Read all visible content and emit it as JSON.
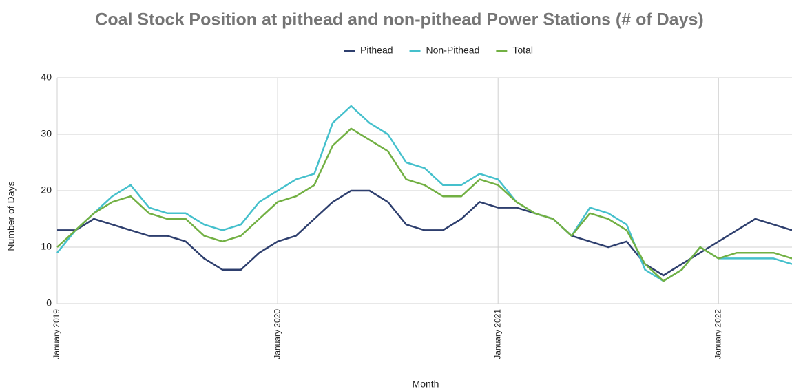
{
  "chart_data": {
    "type": "line",
    "title": "Coal Stock Position at pithead and non-pithead Power Stations (# of Days)",
    "x_label": "Month",
    "y_label": "Number of Days",
    "x": [
      "2019-01",
      "2019-02",
      "2019-03",
      "2019-04",
      "2019-05",
      "2019-06",
      "2019-07",
      "2019-08",
      "2019-09",
      "2019-10",
      "2019-11",
      "2019-12",
      "2020-01",
      "2020-02",
      "2020-03",
      "2020-04",
      "2020-05",
      "2020-06",
      "2020-07",
      "2020-08",
      "2020-09",
      "2020-10",
      "2020-11",
      "2020-12",
      "2021-01",
      "2021-02",
      "2021-03",
      "2021-04",
      "2021-05",
      "2021-06",
      "2021-07",
      "2021-08",
      "2021-09",
      "2021-10",
      "2021-11",
      "2021-12",
      "2022-01",
      "2022-02",
      "2022-03",
      "2022-04",
      "2022-05"
    ],
    "xlim": [
      "2019-01",
      "2022-05"
    ],
    "xticks": [
      {
        "value": "2019-01",
        "label": "January 2019"
      },
      {
        "value": "2020-01",
        "label": "January 2020"
      },
      {
        "value": "2021-01",
        "label": "January 2021"
      },
      {
        "value": "2022-01",
        "label": "January 2022"
      }
    ],
    "ylim": [
      0,
      40
    ],
    "yticks": [
      0,
      10,
      20,
      30,
      40
    ],
    "grid": true,
    "legend": "top",
    "series": [
      {
        "name": "Pithead",
        "color": "#2e3f6e",
        "values": [
          13,
          13,
          15,
          14,
          13,
          12,
          12,
          11,
          8,
          6,
          6,
          9,
          11,
          12,
          15,
          18,
          20,
          20,
          18,
          14,
          13,
          13,
          15,
          18,
          17,
          17,
          16,
          15,
          12,
          11,
          10,
          11,
          7,
          5,
          7,
          9,
          11,
          13,
          15,
          14,
          13
        ]
      },
      {
        "name": "Non-Pithead",
        "color": "#45c0cc",
        "values": [
          9,
          13,
          16,
          19,
          21,
          17,
          16,
          16,
          14,
          13,
          14,
          18,
          20,
          22,
          23,
          32,
          35,
          32,
          30,
          25,
          24,
          21,
          21,
          23,
          22,
          18,
          16,
          15,
          12,
          17,
          16,
          14,
          6,
          4,
          6,
          10,
          8,
          8,
          8,
          8,
          7
        ]
      },
      {
        "name": "Total",
        "color": "#72b043",
        "values": [
          10,
          13,
          16,
          18,
          19,
          16,
          15,
          15,
          12,
          11,
          12,
          15,
          18,
          19,
          21,
          28,
          31,
          29,
          27,
          22,
          21,
          19,
          19,
          22,
          21,
          18,
          16,
          15,
          12,
          16,
          15,
          13,
          7,
          4,
          6,
          10,
          8,
          9,
          9,
          9,
          8
        ]
      }
    ]
  }
}
